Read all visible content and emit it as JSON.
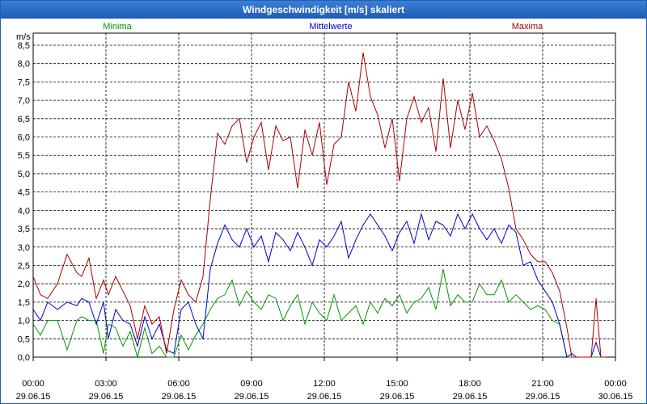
{
  "window": {
    "title": "Windgeschwindigkeit [m/s] skaliert"
  },
  "colors": {
    "minima": "#009900",
    "mittel": "#0000cc",
    "maxima": "#aa0000",
    "grid": "#000000",
    "title_bg": "#2a6bc8"
  },
  "chart_data": {
    "type": "line",
    "title": "Windgeschwindigkeit [m/s] skaliert",
    "ylabel": "m/s",
    "xlabel": "",
    "ylim": [
      0,
      8.5
    ],
    "y_ticks": [
      "0,0",
      "0,5",
      "1,0",
      "1,5",
      "2,0",
      "2,5",
      "3,0",
      "3,5",
      "4,0",
      "4,5",
      "5,0",
      "5,5",
      "6,0",
      "6,5",
      "7,0",
      "7,5",
      "8,0",
      "8,5"
    ],
    "x_ticks": [
      {
        "time": "00:00",
        "date": "29.06.15"
      },
      {
        "time": "03:00",
        "date": "29.06.15"
      },
      {
        "time": "06:00",
        "date": "29.06.15"
      },
      {
        "time": "09:00",
        "date": "29.06.15"
      },
      {
        "time": "12:00",
        "date": "29.06.15"
      },
      {
        "time": "15:00",
        "date": "29.06.15"
      },
      {
        "time": "18:00",
        "date": "29.06.15"
      },
      {
        "time": "21:00",
        "date": "29.06.15"
      },
      {
        "time": "00:00",
        "date": "30.06.15"
      }
    ],
    "x_range_hours": [
      0,
      24
    ],
    "legend": [
      "Minima",
      "Mittelwerte",
      "Maxima"
    ],
    "series": [
      {
        "name": "Minima",
        "color": "#009900",
        "x": [
          0,
          0.3,
          0.6,
          1,
          1.4,
          1.8,
          2,
          2.3,
          2.6,
          2.9,
          3.1,
          3.4,
          3.7,
          4,
          4.3,
          4.6,
          4.9,
          5.2,
          5.5,
          5.8,
          6.1,
          6.4,
          6.7,
          7,
          7.3,
          7.6,
          7.9,
          8.2,
          8.5,
          8.8,
          9.1,
          9.4,
          9.7,
          10,
          10.3,
          10.6,
          10.9,
          11.2,
          11.5,
          11.8,
          12.1,
          12.4,
          12.7,
          13,
          13.3,
          13.6,
          13.9,
          14.2,
          14.5,
          14.8,
          15.1,
          15.4,
          15.7,
          16,
          16.3,
          16.6,
          16.9,
          17.2,
          17.5,
          17.8,
          18.1,
          18.4,
          18.7,
          19,
          19.3,
          19.6,
          19.9,
          20.2,
          20.5,
          20.8,
          21.1,
          21.4,
          21.7,
          22,
          22.2,
          22.4,
          22.7,
          23,
          23.2,
          23.4,
          23.6
        ],
        "values": [
          0.9,
          0.6,
          1.0,
          1.0,
          0.2,
          1.0,
          1.1,
          1.0,
          1.0,
          0.1,
          0.9,
          0.8,
          0.3,
          0.7,
          0.0,
          0.8,
          0.1,
          0.3,
          0.0,
          0.0,
          0.6,
          0.2,
          0.6,
          0.9,
          1.3,
          1.6,
          1.7,
          2.1,
          1.4,
          1.8,
          1.5,
          1.3,
          1.7,
          1.6,
          1.0,
          1.4,
          1.7,
          0.9,
          1.5,
          1.2,
          1.0,
          1.7,
          1.0,
          1.2,
          1.4,
          0.9,
          1.5,
          1.2,
          1.6,
          1.4,
          1.7,
          1.2,
          1.5,
          1.6,
          1.9,
          1.3,
          2.4,
          1.4,
          1.7,
          1.5,
          1.5,
          2.0,
          1.7,
          1.7,
          2.1,
          1.5,
          1.7,
          1.5,
          1.3,
          1.4,
          1.3,
          1.0,
          0.9,
          0.0,
          0.0,
          0.0,
          0.0,
          0.0,
          0.0,
          0.0,
          0.0
        ]
      },
      {
        "name": "Mittelwerte",
        "color": "#0000cc",
        "x": [
          0,
          0.3,
          0.6,
          1,
          1.4,
          1.8,
          2,
          2.3,
          2.6,
          2.9,
          3.1,
          3.4,
          3.7,
          4,
          4.3,
          4.6,
          4.9,
          5.2,
          5.5,
          5.8,
          6.1,
          6.4,
          6.7,
          7,
          7.3,
          7.6,
          7.9,
          8.2,
          8.5,
          8.8,
          9.1,
          9.4,
          9.7,
          10,
          10.3,
          10.6,
          10.9,
          11.2,
          11.5,
          11.8,
          12.1,
          12.4,
          12.7,
          13,
          13.3,
          13.6,
          13.9,
          14.2,
          14.5,
          14.8,
          15.1,
          15.4,
          15.7,
          16,
          16.3,
          16.6,
          16.9,
          17.2,
          17.5,
          17.8,
          18.1,
          18.4,
          18.7,
          19,
          19.3,
          19.6,
          19.9,
          20.2,
          20.5,
          20.8,
          21.1,
          21.4,
          21.7,
          22,
          22.2,
          22.4,
          22.7,
          23,
          23.2,
          23.4,
          23.6
        ],
        "values": [
          1.3,
          1.0,
          1.5,
          1.3,
          1.5,
          1.4,
          1.6,
          1.5,
          0.9,
          1.5,
          0.5,
          1.3,
          1.0,
          0.9,
          0.3,
          1.1,
          0.5,
          0.9,
          0.2,
          0.1,
          1.3,
          1.5,
          0.9,
          0.5,
          2.4,
          3.1,
          3.6,
          3.2,
          3.0,
          3.5,
          3.0,
          3.3,
          2.6,
          3.4,
          3.2,
          2.9,
          3.4,
          3.0,
          2.5,
          3.2,
          3.0,
          3.3,
          3.7,
          2.7,
          3.2,
          3.6,
          3.9,
          3.6,
          3.3,
          2.9,
          3.4,
          3.7,
          3.1,
          3.9,
          3.2,
          3.7,
          3.6,
          3.3,
          3.9,
          3.5,
          3.9,
          3.5,
          3.2,
          3.5,
          3.1,
          3.6,
          3.4,
          2.5,
          2.6,
          2.1,
          1.8,
          1.5,
          0.9,
          0.0,
          0.1,
          0.0,
          0.0,
          0.0,
          0.4,
          0.0,
          0.0
        ]
      },
      {
        "name": "Maxima",
        "color": "#aa0000",
        "x": [
          0,
          0.3,
          0.6,
          1,
          1.4,
          1.8,
          2,
          2.3,
          2.6,
          2.9,
          3.1,
          3.4,
          3.7,
          4,
          4.3,
          4.6,
          4.9,
          5.2,
          5.5,
          5.8,
          6.1,
          6.4,
          6.7,
          7,
          7.3,
          7.6,
          7.9,
          8.2,
          8.5,
          8.8,
          9.1,
          9.4,
          9.7,
          10,
          10.3,
          10.6,
          10.9,
          11.2,
          11.5,
          11.8,
          12.1,
          12.4,
          12.7,
          13,
          13.3,
          13.6,
          13.9,
          14.2,
          14.5,
          14.8,
          15.1,
          15.4,
          15.7,
          16,
          16.3,
          16.6,
          16.9,
          17.2,
          17.5,
          17.8,
          18.1,
          18.4,
          18.7,
          19,
          19.3,
          19.6,
          19.9,
          20.2,
          20.5,
          20.8,
          21.1,
          21.4,
          21.7,
          22,
          22.2,
          22.4,
          22.7,
          23,
          23.2,
          23.4,
          23.6
        ],
        "values": [
          2.2,
          1.7,
          1.6,
          2.0,
          2.8,
          2.3,
          2.2,
          2.7,
          1.6,
          2.1,
          1.7,
          2.2,
          1.8,
          1.4,
          0.5,
          1.4,
          0.9,
          1.1,
          0.1,
          1.3,
          2.1,
          1.7,
          1.5,
          2.2,
          4.3,
          6.1,
          5.8,
          6.3,
          6.5,
          5.3,
          6.0,
          6.4,
          5.1,
          6.3,
          5.9,
          6.0,
          4.6,
          6.2,
          5.5,
          6.4,
          4.7,
          5.8,
          6.0,
          7.5,
          6.7,
          8.3,
          7.1,
          6.6,
          5.7,
          6.5,
          4.8,
          6.5,
          7.1,
          6.4,
          6.8,
          5.6,
          7.6,
          5.7,
          7.0,
          6.2,
          7.2,
          6.0,
          6.3,
          5.9,
          5.4,
          4.6,
          3.5,
          3.2,
          2.8,
          2.6,
          2.6,
          2.3,
          1.8,
          0.8,
          0.0,
          0.0,
          0.0,
          0.0,
          1.6,
          0.0,
          0.0
        ]
      }
    ]
  }
}
